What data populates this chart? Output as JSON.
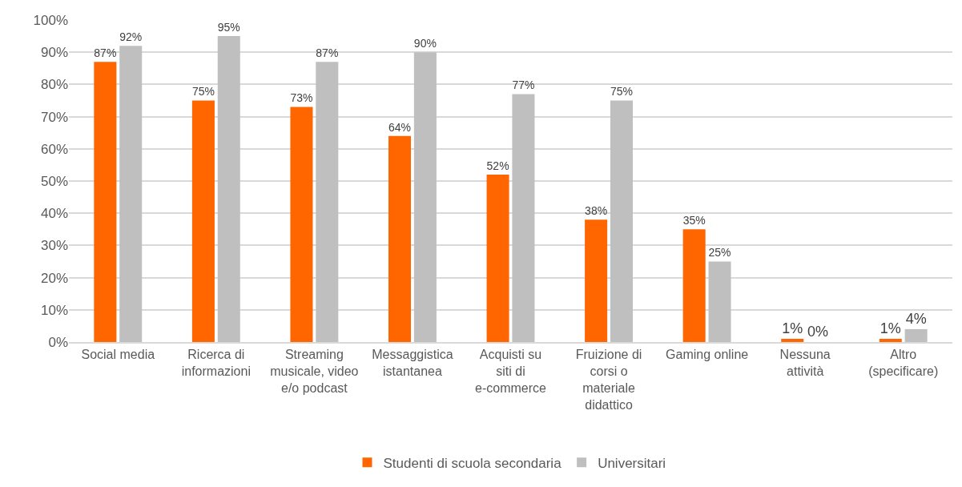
{
  "chart_data": {
    "type": "bar",
    "categories": [
      "Social media",
      "Ricerca di informazioni",
      "Streaming musicale, video e/o podcast",
      "Messaggistica istantanea",
      "Acquisti su siti di e-commerce",
      "Fruizione di corsi o materiale didattico",
      "Gaming online",
      "Nessuna attività",
      "Altro (specificare)"
    ],
    "series": [
      {
        "name": "Studenti di scuola secondaria",
        "color": "#ff6600",
        "values": [
          87,
          75,
          73,
          64,
          52,
          38,
          35,
          1,
          1
        ],
        "value_labels": [
          "87%",
          "75%",
          "73%",
          "64%",
          "52%",
          "38%",
          "35%",
          "1%",
          "1%"
        ]
      },
      {
        "name": "Universitari",
        "color": "#bfbfbf",
        "values": [
          92,
          95,
          87,
          90,
          77,
          75,
          25,
          0,
          4
        ],
        "value_labels": [
          "92%",
          "95%",
          "87%",
          "90%",
          "77%",
          "75%",
          "25%",
          "0%",
          "4%"
        ]
      }
    ],
    "ylim": [
      0,
      100
    ],
    "yticks": [
      {
        "value": 0,
        "label": "0%"
      },
      {
        "value": 10,
        "label": "10%"
      },
      {
        "value": 20,
        "label": "20%"
      },
      {
        "value": 30,
        "label": "30%"
      },
      {
        "value": 40,
        "label": "40%"
      },
      {
        "value": 50,
        "label": "50%"
      },
      {
        "value": 60,
        "label": "60%"
      },
      {
        "value": 70,
        "label": "70%"
      },
      {
        "value": 80,
        "label": "80%"
      },
      {
        "value": 90,
        "label": "90%"
      },
      {
        "value": 100,
        "label": "100%"
      }
    ],
    "grid": "y",
    "legend": "bottom"
  }
}
